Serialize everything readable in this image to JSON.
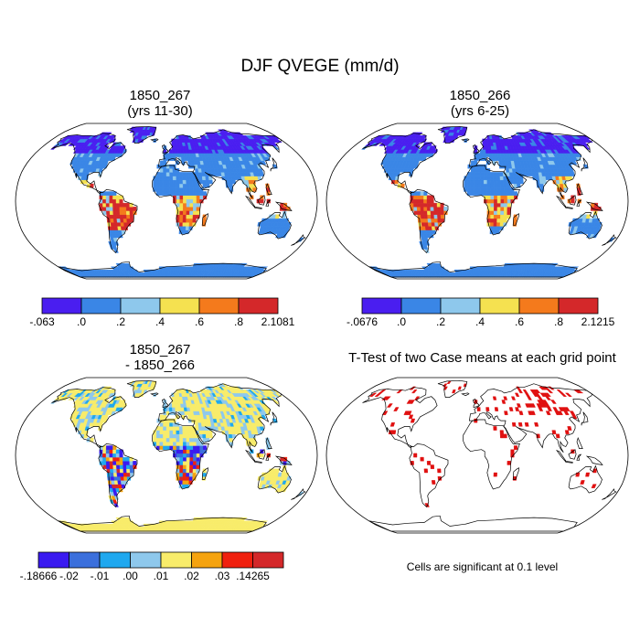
{
  "figure": {
    "title": "DJF QVEGE (mm/d)"
  },
  "panels": [
    {
      "id": "p1",
      "title_line1": "1850_267",
      "title_line2": "(yrs 11-30)",
      "colorbar": {
        "colors": [
          "#4a1ef0",
          "#3a86e6",
          "#8ec8ec",
          "#f5e150",
          "#f47a1c",
          "#d4282a"
        ],
        "labels": [
          "-.063",
          ".0",
          ".2",
          ".4",
          ".6",
          ".8",
          "2.1081"
        ]
      }
    },
    {
      "id": "p2",
      "title_line1": "1850_266",
      "title_line2": "(yrs 6-25)",
      "colorbar": {
        "colors": [
          "#4a1ef0",
          "#3a86e6",
          "#8ec8ec",
          "#f5e150",
          "#f47a1c",
          "#d4282a"
        ],
        "labels": [
          "-.0676",
          ".0",
          ".2",
          ".4",
          ".6",
          ".8",
          "2.1215"
        ]
      }
    },
    {
      "id": "p3",
      "title_line1": "1850_267",
      "title_line2": "- 1850_266",
      "colorbar": {
        "colors": [
          "#3a1af0",
          "#3b6fdc",
          "#1fa8ef",
          "#8ec8ec",
          "#f8ec6a",
          "#f5a30f",
          "#f0200e",
          "#d4282a"
        ],
        "labels": [
          "-.18666",
          "-.02",
          "-.01",
          ".00",
          ".01",
          ".02",
          ".03",
          ".14265"
        ]
      }
    },
    {
      "id": "p4",
      "title_line1": "T-Test of two Case means at each grid point",
      "note": "Cells are significant at 0.1 level"
    }
  ],
  "colors": {
    "ocean": "#ffffff",
    "coast": "#000000",
    "significant": "#e01010"
  }
}
